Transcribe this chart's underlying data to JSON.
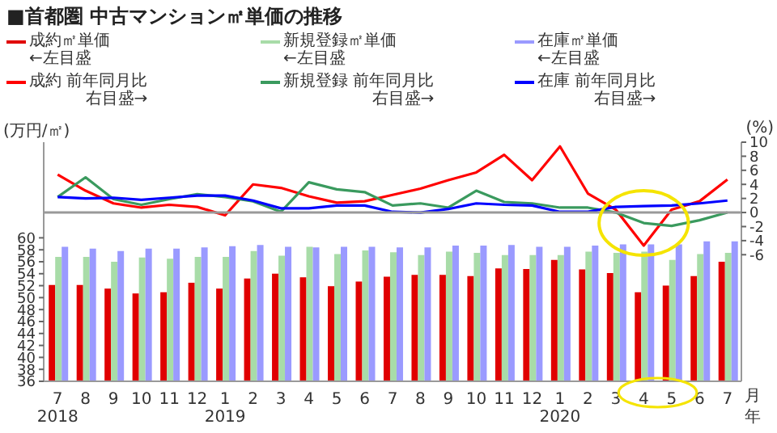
{
  "chart_data": {
    "type": "bar",
    "title": "■首都圏 中古マンション㎡単価の推移",
    "ylabel": "(万円/㎡)",
    "y2label": "(%)",
    "categories": [
      "7\n2018",
      "8",
      "9",
      "10",
      "11",
      "12",
      "1\n2019",
      "2",
      "3",
      "4",
      "5",
      "6",
      "7",
      "8",
      "9",
      "10",
      "11",
      "12",
      "1\n2020",
      "2",
      "3",
      "4",
      "5",
      "6",
      "7"
    ],
    "series": [
      {
        "name": "成約㎡単価",
        "color": "#e00000",
        "values": [
          52.1,
          52.1,
          51.5,
          50.7,
          50.9,
          52.5,
          51.5,
          53.2,
          54.0,
          53.4,
          51.9,
          52.7,
          53.5,
          53.8,
          53.8,
          53.6,
          54.9,
          54.8,
          56.3,
          54.7,
          54.1,
          50.9,
          52.0,
          53.6,
          56.0
        ]
      },
      {
        "name": "新規登録㎡単価",
        "color": "#a8dca8",
        "values": [
          56.8,
          56.8,
          56.0,
          56.7,
          56.5,
          56.8,
          56.8,
          57.8,
          57.0,
          58.5,
          57.3,
          57.9,
          57.6,
          57.1,
          57.7,
          57.5,
          57.1,
          57.1,
          57.1,
          57.7,
          57.5,
          57.7,
          56.3,
          57.3,
          57.5
        ]
      },
      {
        "name": "在庫㎡単価",
        "color": "#9a9aff",
        "values": [
          58.5,
          58.2,
          57.8,
          58.2,
          58.2,
          58.4,
          58.6,
          58.8,
          58.5,
          58.4,
          58.5,
          58.5,
          58.4,
          58.4,
          58.7,
          58.7,
          58.8,
          58.5,
          58.5,
          58.7,
          58.9,
          58.9,
          58.9,
          59.4,
          59.4
        ]
      },
      {
        "name": "成約 前年同月比",
        "type": "line",
        "axis": "y2",
        "color": "#ff0000",
        "values": [
          5.4,
          3.1,
          1.3,
          0.7,
          1.1,
          0.8,
          -0.4,
          4.0,
          3.5,
          2.3,
          1.4,
          1.6,
          2.5,
          3.4,
          4.6,
          5.7,
          8.2,
          4.6,
          9.4,
          2.7,
          0.4,
          -4.7,
          0.4,
          1.6,
          4.7
        ]
      },
      {
        "name": "新規登録 前年同月比",
        "type": "line",
        "axis": "y2",
        "color": "#3a9a5e",
        "values": [
          2.2,
          5.0,
          1.9,
          1.1,
          1.9,
          2.6,
          2.2,
          1.6,
          0.1,
          4.3,
          3.3,
          2.9,
          1.0,
          1.3,
          0.7,
          3.1,
          1.5,
          1.3,
          0.7,
          0.7,
          0.0,
          -1.5,
          -1.9,
          -1.1,
          0.0
        ]
      },
      {
        "name": "在庫 前年同月比",
        "type": "line",
        "axis": "y2",
        "color": "#0000ff",
        "values": [
          2.2,
          2.0,
          2.1,
          1.8,
          2.1,
          2.4,
          2.4,
          1.7,
          0.6,
          0.6,
          1.0,
          1.0,
          0.1,
          0.0,
          0.5,
          1.3,
          1.1,
          1.0,
          0.1,
          0.1,
          0.8,
          0.9,
          1.0,
          1.3,
          1.7
        ]
      }
    ],
    "ylim": [
      36,
      76
    ],
    "yticks": [
      36,
      38,
      40,
      42,
      44,
      46,
      48,
      50,
      52,
      54,
      56,
      58,
      60
    ],
    "y2lim": [
      -24,
      10
    ],
    "y2ticks": [
      -6,
      -4,
      -2,
      0,
      2,
      4,
      6,
      8,
      10
    ],
    "ref_lines": [
      {
        "axis": "y2",
        "value": 0,
        "color": "#999999"
      }
    ],
    "annotations": [
      "月",
      "年",
      "←左目盛",
      "←左目盛",
      "←左目盛",
      "右目盛→",
      "右目盛→",
      "右目盛→"
    ],
    "legend": "top",
    "marker": "none",
    "line_style": "solid"
  }
}
